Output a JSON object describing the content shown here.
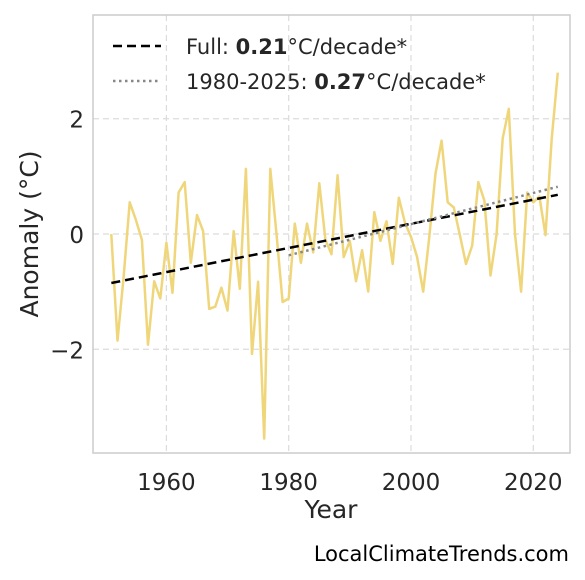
{
  "chart_data": {
    "type": "line",
    "xlabel": "Year",
    "ylabel": "Anomaly (°C)",
    "xlim": [
      1948,
      2026
    ],
    "ylim": [
      -3.8,
      3.8
    ],
    "xticks": [
      1960,
      1980,
      2000,
      2020
    ],
    "yticks": [
      -2,
      0,
      2
    ],
    "ytick_labels": [
      "−2",
      "0",
      "2"
    ],
    "grid": true,
    "legend_position": "top-left",
    "series": [
      {
        "color": "#F0D67A",
        "x": [
          1951,
          1952,
          1953,
          1954,
          1955,
          1956,
          1957,
          1958,
          1959,
          1960,
          1961,
          1962,
          1963,
          1964,
          1965,
          1966,
          1967,
          1968,
          1969,
          1970,
          1971,
          1972,
          1973,
          1974,
          1975,
          1976,
          1977,
          1978,
          1979,
          1980,
          1981,
          1982,
          1983,
          1984,
          1985,
          1986,
          1987,
          1988,
          1989,
          1990,
          1991,
          1992,
          1993,
          1994,
          1995,
          1996,
          1997,
          1998,
          1999,
          2000,
          2001,
          2002,
          2003,
          2004,
          2005,
          2006,
          2007,
          2008,
          2009,
          2010,
          2011,
          2012,
          2013,
          2014,
          2015,
          2016,
          2017,
          2018,
          2019,
          2020,
          2021,
          2022,
          2023,
          2024
        ],
        "y": [
          0.0,
          -1.85,
          -0.75,
          0.55,
          0.25,
          -0.1,
          -1.92,
          -0.82,
          -1.12,
          -0.15,
          -1.02,
          0.72,
          0.9,
          -0.5,
          0.33,
          0.05,
          -1.3,
          -1.26,
          -0.93,
          -1.33,
          0.05,
          -0.95,
          1.13,
          -2.08,
          -0.83,
          -3.55,
          1.13,
          0.0,
          -1.18,
          -1.12,
          0.18,
          -0.5,
          0.18,
          -0.32,
          0.88,
          -0.1,
          -0.35,
          1.02,
          -0.4,
          -0.12,
          -0.82,
          -0.28,
          -1.0,
          0.38,
          -0.12,
          0.22,
          -0.52,
          0.63,
          0.2,
          -0.05,
          -0.4,
          -1.0,
          -0.05,
          1.05,
          1.62,
          0.55,
          0.46,
          -0.02,
          -0.52,
          -0.2,
          0.9,
          0.58,
          -0.72,
          0.0,
          1.66,
          2.17,
          0.0,
          -1.0,
          0.72,
          0.55,
          0.65,
          -0.02,
          1.65,
          2.8
        ]
      }
    ],
    "trends": [
      {
        "label_prefix": "Full: ",
        "label_value": "0.21",
        "label_suffix": "°C/decade*",
        "style": "dashed",
        "color": "#000000",
        "x": [
          1951,
          2024
        ],
        "y": [
          -0.85,
          0.68
        ]
      },
      {
        "label_prefix": "1980-2025: ",
        "label_value": "0.27",
        "label_suffix": "°C/decade*",
        "style": "dotted",
        "color": "#888888",
        "x": [
          1980,
          2024
        ],
        "y": [
          -0.37,
          0.82
        ]
      }
    ]
  },
  "credit": "LocalClimateTrends.com"
}
